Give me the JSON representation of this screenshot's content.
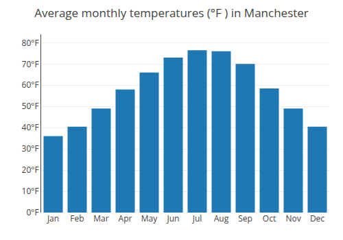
{
  "chart_data": {
    "type": "bar",
    "title": "Average monthly temperatures (°F ) in Manchester",
    "categories": [
      "Jan",
      "Feb",
      "Mar",
      "Apr",
      "May",
      "Jun",
      "Jul",
      "Aug",
      "Sep",
      "Oct",
      "Nov",
      "Dec"
    ],
    "values": [
      36,
      40.5,
      49,
      58,
      66,
      73,
      76.5,
      76,
      70,
      58.5,
      49,
      40.5
    ],
    "ylim": [
      0,
      84
    ],
    "yticks": [
      {
        "value": 0,
        "label": "0°F"
      },
      {
        "value": 10,
        "label": "10°F"
      },
      {
        "value": 20,
        "label": "20°F"
      },
      {
        "value": 30,
        "label": "30°F"
      },
      {
        "value": 40,
        "label": "40°F"
      },
      {
        "value": 50,
        "label": "50°F"
      },
      {
        "value": 60,
        "label": "60°F"
      },
      {
        "value": 70,
        "label": "70°F"
      },
      {
        "value": 80,
        "label": "80°F"
      }
    ],
    "grid": true
  }
}
